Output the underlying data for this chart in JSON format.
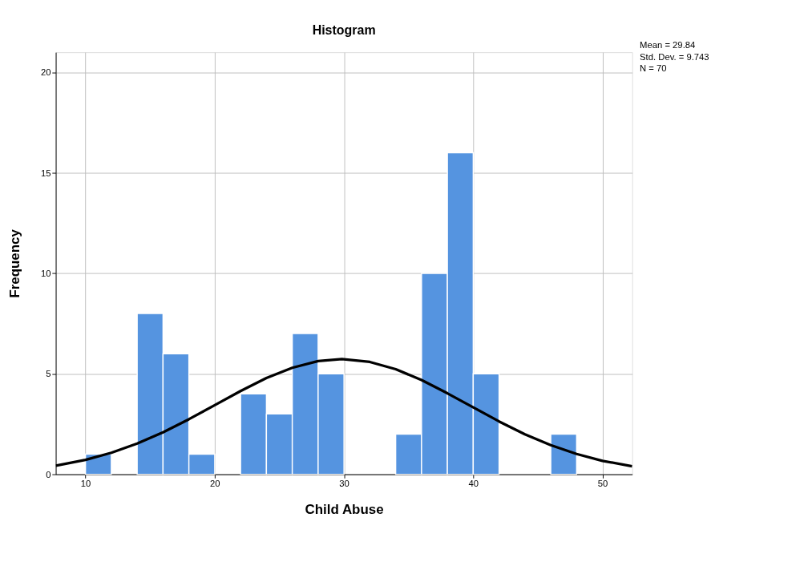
{
  "chart_data": {
    "type": "histogram",
    "title": "Histogram",
    "xlabel": "Child Abuse",
    "ylabel": "Frequency",
    "bins": [
      10,
      12,
      14,
      16,
      18,
      20,
      22,
      24,
      26,
      28,
      30,
      32,
      34,
      36,
      38,
      40,
      42,
      44,
      46,
      48
    ],
    "values": [
      1,
      0,
      8,
      6,
      1,
      0,
      4,
      3,
      7,
      5,
      0,
      0,
      2,
      10,
      16,
      5,
      0,
      0,
      2
    ],
    "color": "#5594e0",
    "series": [
      {
        "type": "line",
        "color": "#000000",
        "x": [
          7.7,
          10,
          12,
          14,
          16,
          18,
          20,
          22,
          24,
          26,
          28,
          29.84,
          32,
          34,
          36,
          38,
          40,
          42,
          44,
          46,
          48,
          50,
          52.3
        ],
        "values": [
          0.43,
          0.72,
          1.07,
          1.53,
          2.09,
          2.74,
          3.44,
          4.14,
          4.79,
          5.3,
          5.63,
          5.73,
          5.59,
          5.23,
          4.69,
          4.03,
          3.33,
          2.63,
          1.99,
          1.45,
          1.01,
          0.67,
          0.4
        ]
      }
    ],
    "xlim": [
      7.7,
      52.3
    ],
    "ylim": [
      0,
      21
    ],
    "xticks": [
      10,
      20,
      30,
      40,
      50
    ],
    "yticks": [
      0,
      5,
      10,
      15,
      20
    ],
    "grid": true,
    "annotations": [
      "Mean = 29.84",
      "Std. Dev. = 9.743",
      "N = 70"
    ]
  }
}
